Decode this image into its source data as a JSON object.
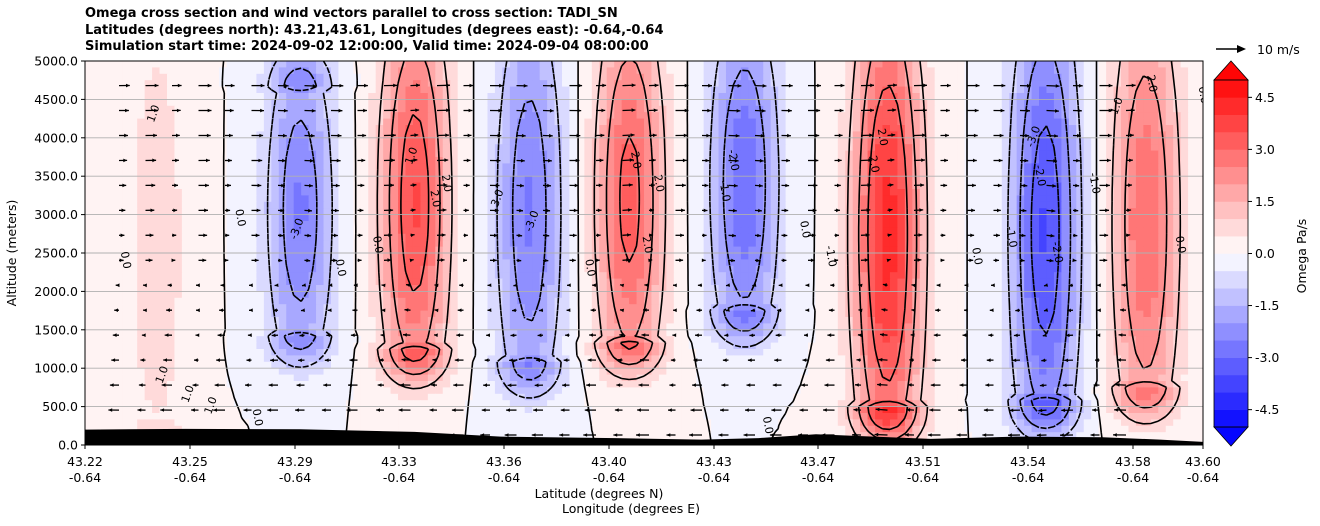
{
  "chart_data": {
    "type": "contour-cross-section",
    "title_lines": [
      "Omega cross section and wind vectors parallel to cross section: TADI_SN",
      "Latitudes (degrees north): 43.21,43.61, Longitudes (degrees east): -0.64,-0.64",
      "Simulation start time: 2024-09-02 12:00:00, Valid time: 2024-09-04 08:00:00"
    ],
    "ylabel": "Altitude (meters)",
    "xlabel_lines": [
      "Latitude (degrees N)",
      "Longitude (degrees E)"
    ],
    "ylim": [
      0,
      5000
    ],
    "yticks": [
      "0.0",
      "500.0",
      "1000.0",
      "1500.0",
      "2000.0",
      "2500.0",
      "3000.0",
      "3500.0",
      "4000.0",
      "4500.0",
      "5000.0"
    ],
    "xticks": [
      {
        "lat": "43.22",
        "lon": "-0.64"
      },
      {
        "lat": "43.25",
        "lon": "-0.64"
      },
      {
        "lat": "43.29",
        "lon": "-0.64"
      },
      {
        "lat": "43.33",
        "lon": "-0.64"
      },
      {
        "lat": "43.36",
        "lon": "-0.64"
      },
      {
        "lat": "43.40",
        "lon": "-0.64"
      },
      {
        "lat": "43.43",
        "lon": "-0.64"
      },
      {
        "lat": "43.47",
        "lon": "-0.64"
      },
      {
        "lat": "43.51",
        "lon": "-0.64"
      },
      {
        "lat": "43.54",
        "lon": "-0.64"
      },
      {
        "lat": "43.58",
        "lon": "-0.64"
      },
      {
        "lat": "43.60",
        "lon": "-0.64"
      }
    ],
    "grid": "horizontal",
    "colorbar": {
      "label": "Omega Pa/s",
      "range": [
        -5.0,
        5.0
      ],
      "ticks": [
        "-4.5",
        "-3.0",
        "-1.5",
        "0.0",
        "1.5",
        "3.0",
        "4.5"
      ],
      "negative_color": "#0000ff",
      "positive_color": "#ff0000"
    },
    "quiver_key": "10 m/s",
    "contour_labels": [
      "1.0",
      "0.0",
      "2.0",
      "3.0",
      "-1.0",
      "-2.0",
      "-3.0"
    ],
    "cells": [
      {
        "lat": 43.24,
        "peak_omega": 0.8,
        "bottom": 300,
        "top": 5000
      },
      {
        "lat": 43.29,
        "peak_omega": -2.6,
        "bottom": 1500,
        "top": 4600
      },
      {
        "lat": 43.33,
        "peak_omega": 3.6,
        "bottom": 1300,
        "top": 5000
      },
      {
        "lat": 43.37,
        "peak_omega": -2.6,
        "bottom": 1100,
        "top": 5000
      },
      {
        "lat": 43.405,
        "peak_omega": 3.3,
        "bottom": 1400,
        "top": 5000
      },
      {
        "lat": 43.445,
        "peak_omega": -3.0,
        "bottom": 1800,
        "top": 5000
      },
      {
        "lat": 43.495,
        "peak_omega": 4.3,
        "bottom": 500,
        "top": 5000
      },
      {
        "lat": 43.55,
        "peak_omega": -3.6,
        "bottom": 600,
        "top": 5000
      },
      {
        "lat": 43.585,
        "peak_omega": 3.0,
        "bottom": 800,
        "top": 5000
      }
    ]
  }
}
